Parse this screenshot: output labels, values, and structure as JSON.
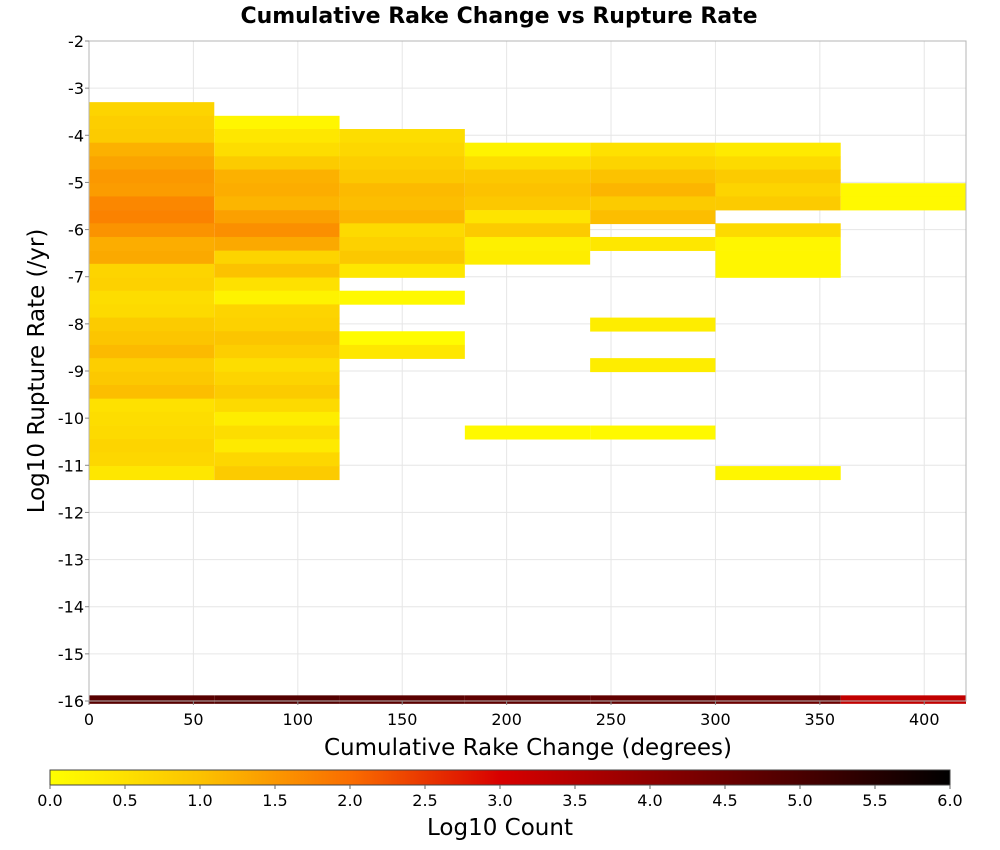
{
  "chart_data": {
    "type": "heatmap",
    "title": "Cumulative Rake Change vs Rupture Rate",
    "xlabel": "Cumulative Rake Change (degrees)",
    "ylabel": "Log10 Rupture Rate (/yr)",
    "xlim": [
      0,
      420
    ],
    "ylim": [
      -16,
      -2
    ],
    "x_ticks": [
      "0",
      "50",
      "100",
      "150",
      "200",
      "250",
      "300",
      "350",
      "400"
    ],
    "y_ticks": [
      "-2",
      "-3",
      "-4",
      "-5",
      "-6",
      "-7",
      "-8",
      "-9",
      "-10",
      "-11",
      "-12",
      "-13",
      "-14",
      "-15",
      "-16"
    ],
    "grid": true,
    "x_bin_width": 60,
    "y_bin_height": 0.286,
    "colorbar": {
      "label": "Log10 Count",
      "min": 0,
      "max": 6,
      "ticks": [
        "0.0",
        "0.5",
        "1.0",
        "1.5",
        "2.0",
        "2.5",
        "3.0",
        "3.5",
        "4.0",
        "4.5",
        "5.0",
        "5.5",
        "6.0"
      ],
      "stops": [
        {
          "v": 0.0,
          "color": "#ffff00"
        },
        {
          "v": 1.0,
          "color": "#fcc200"
        },
        {
          "v": 2.0,
          "color": "#fa6d00"
        },
        {
          "v": 3.0,
          "color": "#d80000"
        },
        {
          "v": 4.0,
          "color": "#8f0000"
        },
        {
          "v": 5.0,
          "color": "#4a0000"
        },
        {
          "v": 6.0,
          "color": "#000000"
        }
      ]
    },
    "columns": [
      {
        "x0": 0,
        "x1": 60,
        "cells": [
          {
            "y": -3.44,
            "v": 0.7
          },
          {
            "y": -3.73,
            "v": 0.8
          },
          {
            "y": -4.01,
            "v": 0.85
          },
          {
            "y": -4.3,
            "v": 1.2
          },
          {
            "y": -4.59,
            "v": 1.35
          },
          {
            "y": -4.87,
            "v": 1.5
          },
          {
            "y": -5.16,
            "v": 1.45
          },
          {
            "y": -5.44,
            "v": 1.7
          },
          {
            "y": -5.73,
            "v": 1.75
          },
          {
            "y": -6.01,
            "v": 1.55
          },
          {
            "y": -6.3,
            "v": 1.25
          },
          {
            "y": -6.59,
            "v": 1.3
          },
          {
            "y": -6.87,
            "v": 0.7
          },
          {
            "y": -7.16,
            "v": 0.75
          },
          {
            "y": -7.44,
            "v": 0.55
          },
          {
            "y": -7.73,
            "v": 0.6
          },
          {
            "y": -8.01,
            "v": 0.85
          },
          {
            "y": -8.3,
            "v": 0.95
          },
          {
            "y": -8.59,
            "v": 1.1
          },
          {
            "y": -8.87,
            "v": 0.8
          },
          {
            "y": -9.16,
            "v": 0.9
          },
          {
            "y": -9.44,
            "v": 1.05
          },
          {
            "y": -9.73,
            "v": 0.5
          },
          {
            "y": -10.01,
            "v": 0.55
          },
          {
            "y": -10.3,
            "v": 0.6
          },
          {
            "y": -10.59,
            "v": 0.7
          },
          {
            "y": -10.87,
            "v": 0.65
          },
          {
            "y": -11.16,
            "v": 0.4
          }
        ]
      },
      {
        "x0": 60,
        "x1": 120,
        "cells": [
          {
            "y": -3.73,
            "v": 0.15
          },
          {
            "y": -4.01,
            "v": 0.4
          },
          {
            "y": -4.3,
            "v": 0.55
          },
          {
            "y": -4.59,
            "v": 0.85
          },
          {
            "y": -4.87,
            "v": 1.2
          },
          {
            "y": -5.16,
            "v": 1.25
          },
          {
            "y": -5.44,
            "v": 1.15
          },
          {
            "y": -5.73,
            "v": 1.4
          },
          {
            "y": -6.01,
            "v": 1.6
          },
          {
            "y": -6.3,
            "v": 1.3
          },
          {
            "y": -6.59,
            "v": 0.7
          },
          {
            "y": -6.87,
            "v": 1.0
          },
          {
            "y": -7.16,
            "v": 0.5
          },
          {
            "y": -7.44,
            "v": 0.2
          },
          {
            "y": -7.73,
            "v": 0.7
          },
          {
            "y": -8.01,
            "v": 0.75
          },
          {
            "y": -8.3,
            "v": 0.95
          },
          {
            "y": -8.59,
            "v": 0.8
          },
          {
            "y": -8.87,
            "v": 0.55
          },
          {
            "y": -9.16,
            "v": 0.7
          },
          {
            "y": -9.44,
            "v": 0.85
          },
          {
            "y": -9.73,
            "v": 0.6
          },
          {
            "y": -10.01,
            "v": 0.3
          },
          {
            "y": -10.3,
            "v": 0.55
          },
          {
            "y": -10.59,
            "v": 0.35
          },
          {
            "y": -10.87,
            "v": 0.65
          },
          {
            "y": -11.16,
            "v": 0.85
          }
        ]
      },
      {
        "x0": 120,
        "x1": 180,
        "cells": [
          {
            "y": -4.01,
            "v": 0.55
          },
          {
            "y": -4.3,
            "v": 0.65
          },
          {
            "y": -4.59,
            "v": 0.8
          },
          {
            "y": -4.87,
            "v": 0.9
          },
          {
            "y": -5.16,
            "v": 1.1
          },
          {
            "y": -5.44,
            "v": 1.05
          },
          {
            "y": -5.73,
            "v": 1.15
          },
          {
            "y": -6.01,
            "v": 0.6
          },
          {
            "y": -6.3,
            "v": 0.75
          },
          {
            "y": -6.59,
            "v": 0.9
          },
          {
            "y": -6.87,
            "v": 0.4
          },
          {
            "y": -7.44,
            "v": 0.1
          },
          {
            "y": -8.3,
            "v": 0.05
          },
          {
            "y": -8.59,
            "v": 0.4
          }
        ]
      },
      {
        "x0": 180,
        "x1": 240,
        "cells": [
          {
            "y": -4.3,
            "v": 0.2
          },
          {
            "y": -4.59,
            "v": 0.55
          },
          {
            "y": -4.87,
            "v": 0.9
          },
          {
            "y": -5.16,
            "v": 1.0
          },
          {
            "y": -5.44,
            "v": 0.9
          },
          {
            "y": -5.73,
            "v": 0.45
          },
          {
            "y": -6.01,
            "v": 0.85
          },
          {
            "y": -6.3,
            "v": 0.25
          },
          {
            "y": -6.59,
            "v": 0.3
          },
          {
            "y": -10.3,
            "v": 0.1
          }
        ]
      },
      {
        "x0": 240,
        "x1": 300,
        "cells": [
          {
            "y": -4.3,
            "v": 0.5
          },
          {
            "y": -4.59,
            "v": 0.7
          },
          {
            "y": -4.87,
            "v": 1.0
          },
          {
            "y": -5.16,
            "v": 1.15
          },
          {
            "y": -5.44,
            "v": 0.85
          },
          {
            "y": -5.73,
            "v": 1.05
          },
          {
            "y": -6.3,
            "v": 0.4
          },
          {
            "y": -8.01,
            "v": 0.3
          },
          {
            "y": -8.87,
            "v": 0.3
          },
          {
            "y": -10.3,
            "v": 0.1
          }
        ]
      },
      {
        "x0": 300,
        "x1": 360,
        "cells": [
          {
            "y": -4.3,
            "v": 0.35
          },
          {
            "y": -4.59,
            "v": 0.6
          },
          {
            "y": -4.87,
            "v": 0.85
          },
          {
            "y": -5.16,
            "v": 0.7
          },
          {
            "y": -5.44,
            "v": 0.85
          },
          {
            "y": -6.01,
            "v": 0.6
          },
          {
            "y": -6.3,
            "v": 0.15
          },
          {
            "y": -6.59,
            "v": 0.15
          },
          {
            "y": -6.87,
            "v": 0.15
          },
          {
            "y": -11.16,
            "v": 0.15
          }
        ]
      },
      {
        "x0": 360,
        "x1": 420,
        "cells": [
          {
            "y": -5.16,
            "v": 0.1
          },
          {
            "y": -5.44,
            "v": 0.1
          }
        ]
      }
    ],
    "bottom_row": {
      "y": -15.97,
      "height": 0.18,
      "values": [
        4.8,
        4.85,
        4.75,
        4.7,
        4.65,
        4.5,
        3.3
      ]
    }
  }
}
